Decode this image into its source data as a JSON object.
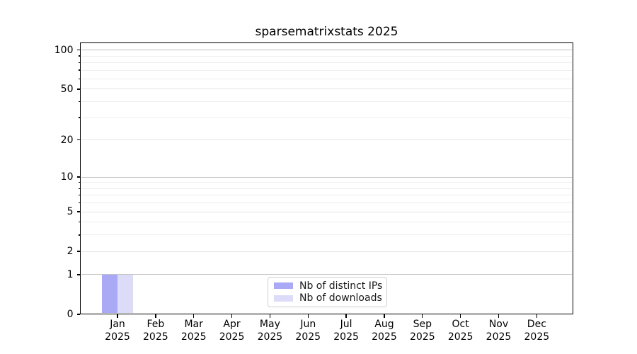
{
  "chart_data": {
    "type": "bar",
    "title": "sparsematrixstats 2025",
    "categories": [
      "Jan",
      "Feb",
      "Mar",
      "Apr",
      "May",
      "Jun",
      "Jul",
      "Aug",
      "Sep",
      "Oct",
      "Nov",
      "Dec"
    ],
    "x_tick_second_line": "2025",
    "series": [
      {
        "name": "Nb of distinct IPs",
        "color": "#a9a9f6",
        "values": [
          1,
          0,
          0,
          0,
          0,
          0,
          0,
          0,
          0,
          0,
          0,
          0
        ]
      },
      {
        "name": "Nb of downloads",
        "color": "#dcdcf8",
        "values": [
          1,
          0,
          0,
          0,
          0,
          0,
          0,
          0,
          0,
          0,
          0,
          0
        ]
      }
    ],
    "yaxis": {
      "scale": "log1p",
      "major_ticks": [
        0,
        1,
        2,
        5,
        10,
        20,
        50,
        100
      ],
      "minor_ticks": [
        3,
        4,
        6,
        7,
        8,
        9,
        30,
        40,
        60,
        70,
        80,
        90
      ],
      "emphasized_gridlines": [
        1,
        10,
        100
      ],
      "range": [
        0,
        115
      ]
    },
    "legend": {
      "position": "lower-center"
    },
    "grid": true
  }
}
